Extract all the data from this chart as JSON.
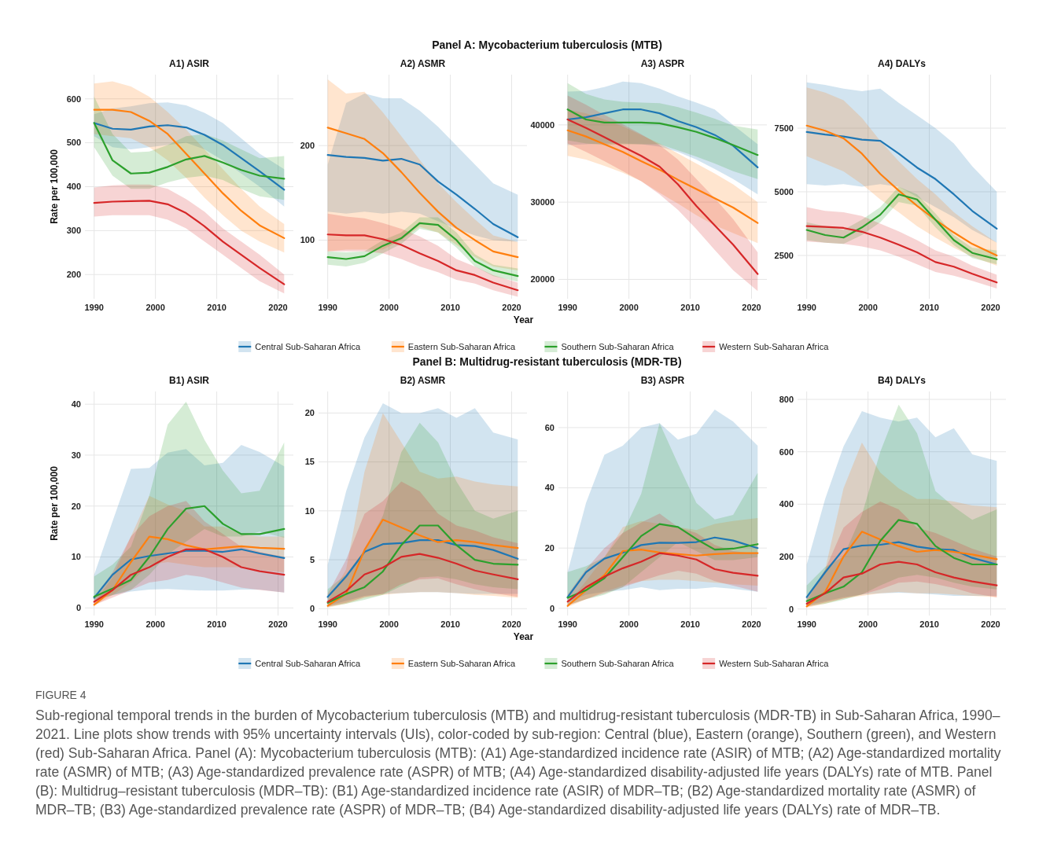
{
  "chart_data": [
    {
      "type": "line",
      "title": "A1) ASIR",
      "ylabel": "Rate per 100,000",
      "grid": true,
      "x": [
        1990,
        1993,
        1996,
        1999,
        2002,
        2005,
        2008,
        2011,
        2014,
        2017,
        2021
      ],
      "xlim": [
        1988.5,
        2022.5
      ],
      "xticks": [
        1990,
        2000,
        2010,
        2020
      ],
      "ylim": [
        145,
        655
      ],
      "yticks": [
        200,
        300,
        400,
        500,
        600
      ],
      "series": [
        {
          "color": "#1f77b4",
          "values": [
            545,
            532,
            530,
            537,
            540,
            535,
            518,
            495,
            465,
            435,
            393
          ],
          "lower": [
            515,
            490,
            485,
            490,
            495,
            500,
            485,
            460,
            430,
            400,
            355
          ],
          "upper": [
            565,
            578,
            583,
            590,
            592,
            585,
            568,
            545,
            510,
            475,
            440
          ]
        },
        {
          "color": "#ff7f0e",
          "values": [
            575,
            575,
            570,
            550,
            520,
            475,
            430,
            385,
            345,
            312,
            283
          ],
          "lower": [
            520,
            515,
            510,
            490,
            460,
            420,
            375,
            335,
            300,
            275,
            250
          ],
          "upper": [
            635,
            640,
            628,
            605,
            570,
            530,
            485,
            440,
            395,
            355,
            315
          ]
        },
        {
          "color": "#2ca02c",
          "values": [
            545,
            460,
            430,
            432,
            445,
            462,
            470,
            455,
            438,
            425,
            418
          ],
          "lower": [
            490,
            425,
            395,
            395,
            410,
            420,
            425,
            415,
            395,
            378,
            370
          ],
          "upper": [
            605,
            520,
            478,
            480,
            495,
            515,
            520,
            505,
            485,
            465,
            470
          ]
        },
        {
          "color": "#d62728",
          "values": [
            363,
            366,
            367,
            368,
            360,
            340,
            310,
            275,
            245,
            215,
            178
          ],
          "lower": [
            332,
            335,
            335,
            335,
            325,
            305,
            275,
            245,
            215,
            185,
            157
          ],
          "upper": [
            398,
            403,
            405,
            405,
            395,
            372,
            343,
            305,
            275,
            245,
            200
          ]
        }
      ]
    },
    {
      "type": "line",
      "title": "A2) ASMR",
      "grid": true,
      "x": [
        1990,
        1993,
        1996,
        1999,
        2002,
        2005,
        2008,
        2011,
        2014,
        2017,
        2021
      ],
      "xlim": [
        1988.5,
        2022.5
      ],
      "xticks": [
        1990,
        2000,
        2010,
        2020
      ],
      "ylim": [
        38,
        275
      ],
      "yticks": [
        100,
        200
      ],
      "series": [
        {
          "color": "#1f77b4",
          "values": [
            190,
            188,
            187,
            184,
            186,
            180,
            162,
            148,
            133,
            117,
            103
          ],
          "lower": [
            130,
            128,
            130,
            128,
            130,
            128,
            120,
            112,
            105,
            100,
            98
          ],
          "upper": [
            180,
            245,
            255,
            250,
            250,
            237,
            220,
            200,
            180,
            160,
            148
          ]
        },
        {
          "color": "#ff7f0e",
          "values": [
            219,
            213,
            207,
            192,
            172,
            150,
            130,
            113,
            100,
            88,
            82
          ],
          "lower": [
            88,
            90,
            90,
            90,
            100,
            114,
            108,
            95,
            82,
            72,
            68
          ],
          "upper": [
            270,
            255,
            257,
            235,
            210,
            185,
            160,
            140,
            122,
            105,
            98
          ]
        },
        {
          "color": "#2ca02c",
          "values": [
            82,
            80,
            83,
            94,
            102,
            118,
            116,
            100,
            78,
            68,
            62
          ],
          "lower": [
            74,
            72,
            76,
            86,
            96,
            112,
            108,
            92,
            72,
            62,
            56
          ],
          "upper": [
            88,
            87,
            88,
            100,
            108,
            124,
            124,
            108,
            85,
            74,
            70
          ]
        },
        {
          "color": "#d62728",
          "values": [
            106,
            105,
            105,
            101,
            95,
            86,
            78,
            68,
            63,
            55,
            47
          ],
          "lower": [
            88,
            88,
            88,
            86,
            80,
            72,
            66,
            58,
            54,
            47,
            40
          ],
          "upper": [
            128,
            125,
            123,
            118,
            112,
            104,
            94,
            80,
            72,
            63,
            55
          ]
        }
      ]
    },
    {
      "type": "line",
      "title": "A3) ASPR",
      "subtitle": "Panel A: Mycobacterium tuberculosis (MTB)",
      "xlabel": "Year",
      "legend": "bottom",
      "grid": true,
      "x": [
        1990,
        1993,
        1996,
        1999,
        2002,
        2005,
        2008,
        2011,
        2014,
        2017,
        2021
      ],
      "xlim": [
        1988.5,
        2022.5
      ],
      "xticks": [
        1990,
        2000,
        2010,
        2020
      ],
      "ylim": [
        17500,
        46500
      ],
      "yticks": [
        20000,
        30000,
        40000
      ],
      "series": [
        {
          "name": "Central Sub-Saharan Africa",
          "color": "#1f77b4",
          "values": [
            40700,
            41000,
            41500,
            42000,
            42000,
            41500,
            40500,
            39700,
            38700,
            37300,
            34500
          ],
          "lower": [
            37400,
            37500,
            37600,
            37600,
            37500,
            37200,
            36500,
            35500,
            34300,
            33000,
            31000
          ],
          "upper": [
            44300,
            44400,
            44900,
            45600,
            45400,
            44700,
            43700,
            42900,
            42000,
            40000,
            37500
          ]
        },
        {
          "name": "Eastern Sub-Saharan Africa",
          "color": "#ff7f0e",
          "values": [
            39300,
            38500,
            37500,
            36500,
            35300,
            34200,
            32900,
            31700,
            30500,
            29300,
            27300
          ],
          "lower": [
            36000,
            35500,
            34700,
            33800,
            32700,
            31200,
            29800,
            28300,
            27000,
            26000,
            24700
          ],
          "upper": [
            42000,
            41500,
            40700,
            39800,
            38700,
            37600,
            36300,
            35000,
            33700,
            32300,
            30000
          ]
        },
        {
          "name": "Southern Sub-Saharan Africa",
          "color": "#2ca02c",
          "values": [
            42000,
            40700,
            40300,
            40300,
            40300,
            40200,
            39700,
            39100,
            38300,
            37400,
            36100
          ],
          "lower": [
            38000,
            37600,
            37400,
            37500,
            37500,
            37500,
            36700,
            35900,
            35000,
            34000,
            33000
          ],
          "upper": [
            45400,
            44000,
            43300,
            43000,
            42900,
            42800,
            42300,
            41600,
            40800,
            39900,
            39400
          ]
        },
        {
          "name": "Western Sub-Saharan Africa",
          "color": "#d62728",
          "values": [
            40700,
            39600,
            38400,
            37200,
            36000,
            34600,
            32300,
            29500,
            27000,
            24500,
            20700
          ],
          "lower": [
            37600,
            36500,
            35300,
            34000,
            32700,
            31000,
            29000,
            26500,
            23800,
            21200,
            18500
          ],
          "upper": [
            43800,
            42600,
            41300,
            40100,
            38800,
            37400,
            35500,
            33000,
            30500,
            27800,
            23500
          ]
        }
      ]
    },
    {
      "type": "line",
      "title": "A4) DALYs",
      "grid": true,
      "x": [
        1990,
        1993,
        1996,
        1999,
        2002,
        2005,
        2008,
        2011,
        2014,
        2017,
        2021
      ],
      "xlim": [
        1988.5,
        2022.5
      ],
      "xticks": [
        1990,
        2000,
        2010,
        2020
      ],
      "ylim": [
        800,
        9600
      ],
      "yticks": [
        2500,
        5000,
        7500
      ],
      "series": [
        {
          "color": "#1f77b4",
          "values": [
            7350,
            7250,
            7170,
            7050,
            7000,
            6500,
            5950,
            5500,
            4900,
            4250,
            3550
          ],
          "lower": [
            5300,
            5250,
            5300,
            5200,
            5300,
            5200,
            4800,
            4400,
            4000,
            3500,
            3000
          ],
          "upper": [
            9300,
            9200,
            9050,
            8950,
            9050,
            8500,
            8000,
            7500,
            6900,
            6000,
            5000
          ]
        },
        {
          "color": "#ff7f0e",
          "values": [
            7600,
            7400,
            7100,
            6500,
            5700,
            5050,
            4450,
            3900,
            3400,
            2950,
            2500
          ],
          "lower": [
            6400,
            6100,
            5800,
            5300,
            4700,
            4200,
            3650,
            3200,
            2800,
            2450,
            2100
          ],
          "upper": [
            9100,
            8900,
            8600,
            7900,
            7000,
            6200,
            5500,
            4900,
            4200,
            3650,
            3000
          ]
        },
        {
          "color": "#2ca02c",
          "values": [
            3500,
            3300,
            3200,
            3600,
            4100,
            4900,
            4700,
            3900,
            3100,
            2600,
            2350
          ],
          "lower": [
            3100,
            3000,
            2950,
            3300,
            3800,
            4600,
            4450,
            3600,
            2900,
            2400,
            2150
          ],
          "upper": [
            3800,
            3650,
            3500,
            3900,
            4400,
            5200,
            4900,
            4150,
            3300,
            2800,
            2700
          ]
        },
        {
          "color": "#d62728",
          "values": [
            3650,
            3620,
            3580,
            3430,
            3200,
            2920,
            2620,
            2240,
            2060,
            1780,
            1440
          ],
          "lower": [
            3050,
            3000,
            2950,
            2850,
            2700,
            2450,
            2150,
            1850,
            1700,
            1500,
            1200
          ],
          "upper": [
            4400,
            4250,
            4200,
            4050,
            3750,
            3450,
            3100,
            2700,
            2450,
            2100,
            1740
          ]
        }
      ]
    },
    {
      "type": "line",
      "title": "B1) ASIR",
      "ylabel": "Rate per 100,000",
      "grid": true,
      "x": [
        1990,
        1993,
        1996,
        1999,
        2002,
        2005,
        2008,
        2011,
        2014,
        2017,
        2021
      ],
      "xlim": [
        1988.5,
        2022.5
      ],
      "xticks": [
        1990,
        2000,
        2010,
        2020
      ],
      "ylim": [
        -1.5,
        42.5
      ],
      "yticks": [
        0,
        10,
        20,
        30,
        40
      ],
      "series": [
        {
          "color": "#1f77b4",
          "values": [
            2,
            6.5,
            9.5,
            10.2,
            10.7,
            11.2,
            11.2,
            11,
            11.5,
            10.7,
            9.8
          ],
          "lower": [
            1.5,
            2.5,
            3.2,
            3.6,
            3.7,
            3.5,
            3.4,
            3.4,
            3.6,
            3.6,
            3
          ],
          "upper": [
            6.5,
            17,
            27.3,
            27.5,
            30.5,
            31.2,
            28,
            28.5,
            32,
            30.6,
            27.8
          ]
        },
        {
          "color": "#ff7f0e",
          "values": [
            0.6,
            3.5,
            9,
            14,
            13.5,
            12.3,
            11.5,
            11.8,
            12.1,
            11.8,
            11.6
          ],
          "lower": [
            0.4,
            2.5,
            5,
            8.5,
            9,
            8.5,
            8,
            8,
            8,
            7.5,
            7
          ],
          "upper": [
            1,
            6,
            14,
            22,
            20.3,
            19,
            16,
            16,
            14.5,
            14,
            14
          ]
        },
        {
          "color": "#2ca02c",
          "values": [
            2.2,
            3.8,
            5.5,
            10,
            15.5,
            19.5,
            20,
            16.5,
            14.5,
            14.5,
            15.5
          ],
          "lower": [
            1.5,
            2.5,
            3.5,
            6.5,
            10.5,
            13,
            15.5,
            14,
            14,
            15,
            13.8
          ],
          "upper": [
            6.2,
            8.5,
            12,
            22,
            36,
            40.5,
            33,
            27,
            22.5,
            23,
            32.5
          ]
        },
        {
          "color": "#d62728",
          "values": [
            1.2,
            3.5,
            6.5,
            8,
            10,
            11.5,
            11.5,
            10,
            8,
            7.2,
            6.5
          ],
          "lower": [
            0.6,
            2,
            3.5,
            5,
            5.5,
            6.5,
            6,
            5,
            4,
            3.5,
            3
          ],
          "upper": [
            2,
            7,
            14,
            18,
            20,
            21,
            17,
            14.5,
            12,
            11,
            10
          ]
        }
      ]
    },
    {
      "type": "line",
      "title": "B2) ASMR",
      "grid": true,
      "x": [
        1990,
        1993,
        1996,
        1999,
        2002,
        2005,
        2008,
        2011,
        2014,
        2017,
        2021
      ],
      "xlim": [
        1988.5,
        2022.5
      ],
      "xticks": [
        1990,
        2000,
        2010,
        2020
      ],
      "ylim": [
        -0.7,
        22.2
      ],
      "yticks": [
        0,
        5,
        10,
        15,
        20
      ],
      "series": [
        {
          "color": "#1f77b4",
          "values": [
            1.2,
            3.3,
            5.8,
            6.6,
            6.7,
            7,
            7,
            6.5,
            6.4,
            6,
            5.1
          ],
          "lower": [
            0.3,
            0.8,
            1.3,
            1.5,
            1.6,
            1.7,
            1.7,
            1.6,
            1.5,
            1.5,
            1.5
          ],
          "upper": [
            4.5,
            12,
            17.5,
            21,
            20,
            20,
            20.5,
            19.5,
            20.5,
            18,
            17.3
          ]
        },
        {
          "color": "#ff7f0e",
          "values": [
            0.3,
            1.5,
            6,
            9.1,
            8.3,
            7.5,
            6.8,
            7,
            6.8,
            6.5,
            6.2
          ],
          "lower": [
            0.1,
            0.5,
            1.1,
            1.4,
            1.6,
            1.7,
            1.7,
            1.6,
            1.4,
            1.3,
            1.1
          ],
          "upper": [
            0.8,
            4,
            14,
            20,
            17,
            14,
            13.3,
            13.5,
            13,
            12.7,
            12.5
          ]
        },
        {
          "color": "#2ca02c",
          "values": [
            0.6,
            1.5,
            2.2,
            3.8,
            6.5,
            8.5,
            8.5,
            6.5,
            5,
            4.6,
            4.5
          ],
          "lower": [
            0.2,
            0.5,
            0.9,
            1.4,
            2.3,
            3.2,
            3.3,
            3,
            2.5,
            2.2,
            2
          ],
          "upper": [
            2,
            3.5,
            6,
            9.5,
            16,
            19,
            17,
            13,
            10,
            9.2,
            10
          ]
        },
        {
          "color": "#d62728",
          "values": [
            0.7,
            1.8,
            3.5,
            4.2,
            5.3,
            5.6,
            5.2,
            4.6,
            3.9,
            3.5,
            3
          ],
          "lower": [
            0.2,
            0.6,
            1.2,
            1.5,
            2.5,
            3,
            3.1,
            2.5,
            2,
            1.6,
            1.2
          ],
          "upper": [
            1.5,
            5,
            9.7,
            11,
            13,
            12,
            9.7,
            8.5,
            8,
            7.3,
            6.7
          ]
        }
      ]
    },
    {
      "type": "line",
      "title": "B3) ASPR",
      "subtitle": "Panel B: Multidrug-resistant tuberculosis (MDR-TB)",
      "xlabel": "Year",
      "legend": "bottom",
      "grid": true,
      "x": [
        1990,
        1993,
        1996,
        1999,
        2002,
        2005,
        2008,
        2011,
        2014,
        2017,
        2021
      ],
      "xlim": [
        1988.5,
        2022.5
      ],
      "xticks": [
        1990,
        2000,
        2010,
        2020
      ],
      "ylim": [
        -2.4,
        72
      ],
      "yticks": [
        0,
        20,
        40,
        60
      ],
      "series": [
        {
          "name": "Central Sub-Saharan Africa",
          "color": "#1f77b4",
          "values": [
            3.7,
            12,
            16.5,
            18.5,
            21,
            21.8,
            21.7,
            22,
            23.5,
            22.5,
            20
          ],
          "lower": [
            2,
            4.5,
            5.5,
            6,
            7,
            6,
            6.5,
            6.5,
            7,
            6.5,
            5.5
          ],
          "upper": [
            12,
            35,
            51,
            54,
            60,
            61.5,
            56,
            58,
            66,
            62,
            54
          ]
        },
        {
          "name": "Eastern Sub-Saharan Africa",
          "color": "#ff7f0e",
          "values": [
            0.8,
            6,
            11,
            19,
            19.5,
            18.5,
            18,
            17.5,
            18,
            18.3,
            18.3
          ],
          "lower": [
            0.4,
            3,
            5.5,
            7.5,
            9,
            9.5,
            9.5,
            9,
            8.5,
            8,
            7.5
          ],
          "upper": [
            1.5,
            9,
            17,
            27,
            29,
            28,
            27,
            26,
            28,
            29,
            30
          ]
        },
        {
          "name": "Southern Sub-Saharan Africa",
          "color": "#2ca02c",
          "values": [
            3.5,
            6,
            10,
            17,
            24,
            28,
            27,
            23,
            19.5,
            19.8,
            21.3
          ],
          "lower": [
            1,
            3,
            4.5,
            7,
            12,
            17,
            22,
            19,
            16,
            16,
            17
          ],
          "upper": [
            12,
            14,
            17,
            25,
            38,
            61.5,
            48,
            35,
            29.5,
            31,
            45
          ]
        },
        {
          "name": "Western Sub-Saharan Africa",
          "color": "#d62728",
          "values": [
            2.2,
            7,
            10.5,
            13.3,
            15.5,
            18.3,
            17.5,
            16.2,
            13,
            11.8,
            10.8
          ],
          "lower": [
            1,
            3,
            5,
            7,
            9,
            11,
            12.5,
            11.5,
            9,
            7.5,
            5.5
          ],
          "upper": [
            4.5,
            13,
            20,
            25,
            28.5,
            31.5,
            27,
            25,
            21,
            19,
            18
          ]
        }
      ]
    },
    {
      "type": "line",
      "title": "B4) DALYs",
      "grid": true,
      "x": [
        1990,
        1993,
        1996,
        1999,
        2002,
        2005,
        2008,
        2011,
        2014,
        2017,
        2021
      ],
      "xlim": [
        1988.5,
        2022.5
      ],
      "xticks": [
        1990,
        2000,
        2010,
        2020
      ],
      "ylim": [
        -25,
        830
      ],
      "yticks": [
        0,
        200,
        400,
        600,
        800
      ],
      "annotations": [
        "FIGURE 4",
        "Sub-regional temporal trends in the burden of Mycobacterium tuberculosis (MTB) and multidrug-resistant tuberculosis (MDR-TB) in Sub-Saharan Africa, 1990–2021. Line plots show trends with 95% uncertainty intervals (UIs), color-coded by sub-region: Central (blue), Eastern (orange), Southern (green), and Western (red) Sub-Saharan Africa. Panel (A): Mycobacterium tuberculosis (MTB): (A1) Age-standardized incidence rate (ASIR) of MTB; (A2) Age-standardized mortality rate (ASMR) of MTB; (A3) Age-standardized prevalence rate (ASPR) of MTB; (A4) Age-standardized disability-adjusted life years (DALYs) rate of MTB. Panel (B): Multidrug–resistant tuberculosis (MDR–TB): (B1) Age-standardized incidence rate (ASIR) of MDR–TB; (B2) Age-standardized mortality rate (ASMR) of MDR–TB; (B3) Age-standardized prevalence rate (ASPR) of MDR–TB; (B4) Age-standardized disability-adjusted life years (DALYs) rate of MDR–TB."
      ],
      "series": [
        {
          "color": "#1f77b4",
          "values": [
            45,
            140,
            228,
            242,
            245,
            255,
            238,
            228,
            225,
            195,
            170
          ],
          "lower": [
            15,
            30,
            45,
            55,
            60,
            62,
            60,
            55,
            50,
            50,
            50
          ],
          "upper": [
            170,
            420,
            620,
            755,
            730,
            715,
            730,
            655,
            690,
            590,
            565
          ]
        },
        {
          "color": "#ff7f0e",
          "values": [
            10,
            65,
            200,
            295,
            265,
            240,
            218,
            225,
            218,
            208,
            190
          ],
          "lower": [
            5,
            20,
            40,
            50,
            60,
            65,
            60,
            60,
            55,
            50,
            45
          ],
          "upper": [
            30,
            150,
            460,
            635,
            520,
            460,
            420,
            420,
            410,
            395,
            388
          ]
        },
        {
          "color": "#2ca02c",
          "values": [
            30,
            60,
            85,
            140,
            260,
            340,
            325,
            240,
            195,
            170,
            170
          ],
          "lower": [
            10,
            20,
            35,
            55,
            90,
            120,
            130,
            120,
            100,
            85,
            75
          ],
          "upper": [
            90,
            160,
            200,
            360,
            600,
            780,
            670,
            450,
            390,
            340,
            380
          ]
        },
        {
          "color": "#d62728",
          "values": [
            20,
            60,
            120,
            135,
            170,
            180,
            170,
            140,
            120,
            105,
            90
          ],
          "lower": [
            8,
            25,
            40,
            55,
            75,
            100,
            105,
            95,
            80,
            60,
            45
          ],
          "upper": [
            45,
            150,
            310,
            370,
            410,
            380,
            310,
            290,
            260,
            230,
            200
          ]
        }
      ]
    }
  ]
}
